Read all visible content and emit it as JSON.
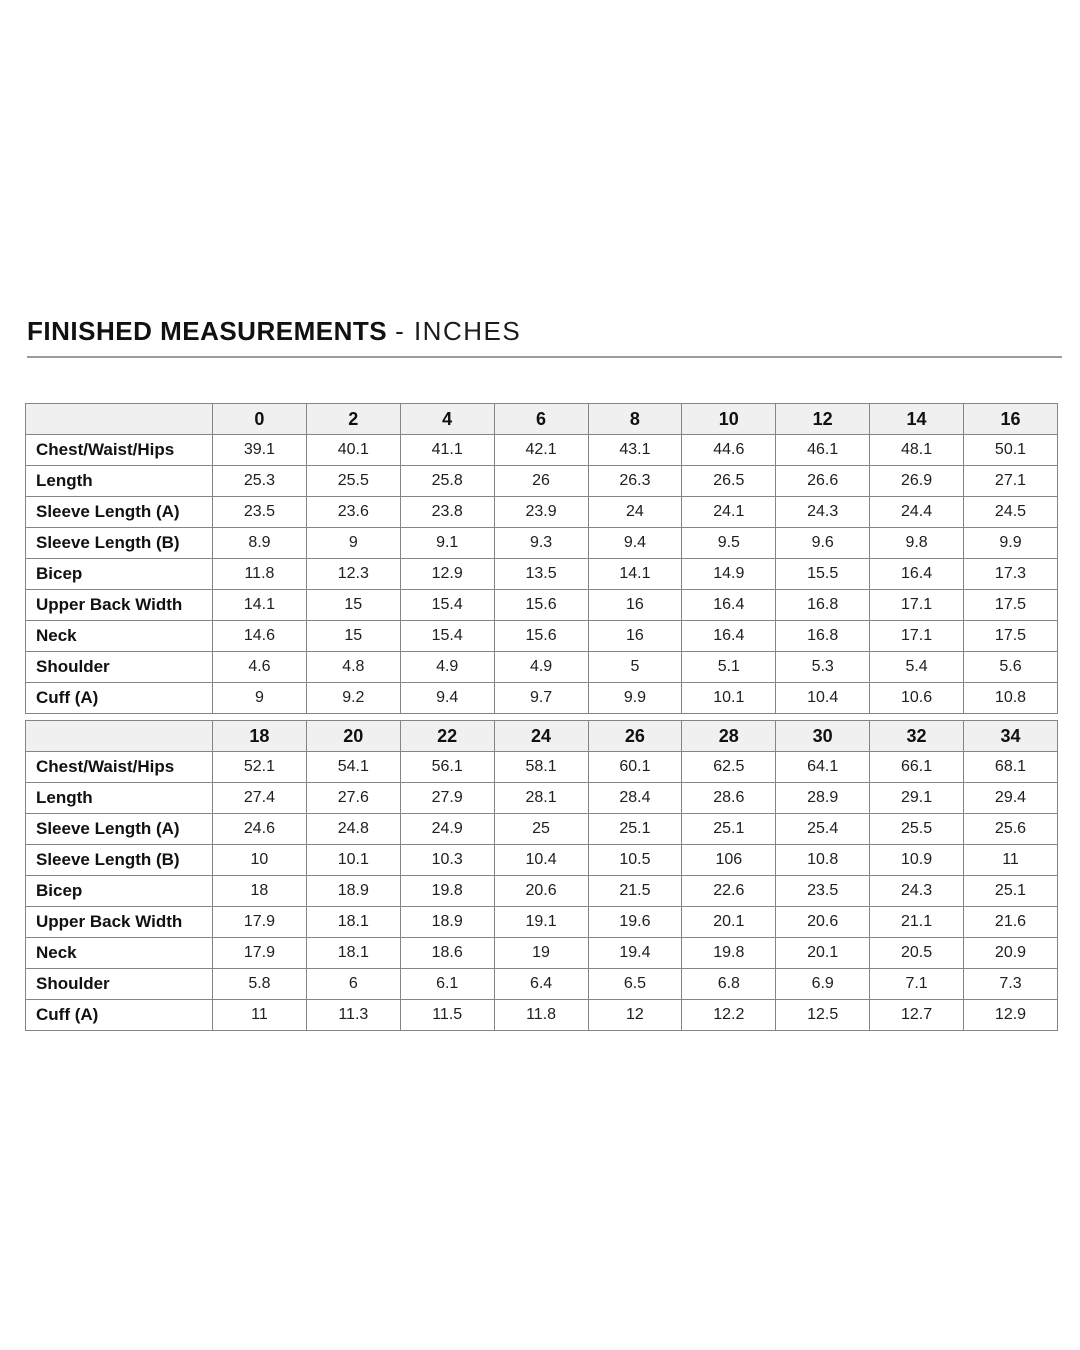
{
  "page": {
    "title": {
      "bold": "FINISHED MEASUREMENTS",
      "light": "- INCHES"
    }
  },
  "colors": {
    "header_bg": "#f0f0f0",
    "border": "#858585",
    "text": "#111111",
    "rule": "#9c9c9c"
  },
  "measurements_table": {
    "unit": "inches",
    "blocks": [
      {
        "sizes": [
          "0",
          "2",
          "4",
          "6",
          "8",
          "10",
          "12",
          "14",
          "16"
        ],
        "rows": [
          {
            "label": "Chest/Waist/Hips",
            "values": [
              "39.1",
              "40.1",
              "41.1",
              "42.1",
              "43.1",
              "44.6",
              "46.1",
              "48.1",
              "50.1"
            ]
          },
          {
            "label": "Length",
            "values": [
              "25.3",
              "25.5",
              "25.8",
              "26",
              "26.3",
              "26.5",
              "26.6",
              "26.9",
              "27.1"
            ]
          },
          {
            "label": "Sleeve Length (A)",
            "values": [
              "23.5",
              "23.6",
              "23.8",
              "23.9",
              "24",
              "24.1",
              "24.3",
              "24.4",
              "24.5"
            ]
          },
          {
            "label": "Sleeve Length (B)",
            "values": [
              "8.9",
              "9",
              "9.1",
              "9.3",
              "9.4",
              "9.5",
              "9.6",
              "9.8",
              "9.9"
            ]
          },
          {
            "label": "Bicep",
            "values": [
              "11.8",
              "12.3",
              "12.9",
              "13.5",
              "14.1",
              "14.9",
              "15.5",
              "16.4",
              "17.3"
            ]
          },
          {
            "label": "Upper Back Width",
            "values": [
              "14.1",
              "15",
              "15.4",
              "15.6",
              "16",
              "16.4",
              "16.8",
              "17.1",
              "17.5"
            ]
          },
          {
            "label": "Neck",
            "values": [
              "14.6",
              "15",
              "15.4",
              "15.6",
              "16",
              "16.4",
              "16.8",
              "17.1",
              "17.5"
            ]
          },
          {
            "label": "Shoulder",
            "values": [
              "4.6",
              "4.8",
              "4.9",
              "4.9",
              "5",
              "5.1",
              "5.3",
              "5.4",
              "5.6"
            ]
          },
          {
            "label": "Cuff (A)",
            "values": [
              "9",
              "9.2",
              "9.4",
              "9.7",
              "9.9",
              "10.1",
              "10.4",
              "10.6",
              "10.8"
            ]
          }
        ]
      },
      {
        "sizes": [
          "18",
          "20",
          "22",
          "24",
          "26",
          "28",
          "30",
          "32",
          "34"
        ],
        "rows": [
          {
            "label": "Chest/Waist/Hips",
            "values": [
              "52.1",
              "54.1",
              "56.1",
              "58.1",
              "60.1",
              "62.5",
              "64.1",
              "66.1",
              "68.1"
            ]
          },
          {
            "label": "Length",
            "values": [
              "27.4",
              "27.6",
              "27.9",
              "28.1",
              "28.4",
              "28.6",
              "28.9",
              "29.1",
              "29.4"
            ]
          },
          {
            "label": "Sleeve Length (A)",
            "values": [
              "24.6",
              "24.8",
              "24.9",
              "25",
              "25.1",
              "25.1",
              "25.4",
              "25.5",
              "25.6"
            ]
          },
          {
            "label": "Sleeve Length (B)",
            "values": [
              "10",
              "10.1",
              "10.3",
              "10.4",
              "10.5",
              "106",
              "10.8",
              "10.9",
              "11"
            ]
          },
          {
            "label": "Bicep",
            "values": [
              "18",
              "18.9",
              "19.8",
              "20.6",
              "21.5",
              "22.6",
              "23.5",
              "24.3",
              "25.1"
            ]
          },
          {
            "label": "Upper Back Width",
            "values": [
              "17.9",
              "18.1",
              "18.9",
              "19.1",
              "19.6",
              "20.1",
              "20.6",
              "21.1",
              "21.6"
            ]
          },
          {
            "label": "Neck",
            "values": [
              "17.9",
              "18.1",
              "18.6",
              "19",
              "19.4",
              "19.8",
              "20.1",
              "20.5",
              "20.9"
            ]
          },
          {
            "label": "Shoulder",
            "values": [
              "5.8",
              "6",
              "6.1",
              "6.4",
              "6.5",
              "6.8",
              "6.9",
              "7.1",
              "7.3"
            ]
          },
          {
            "label": "Cuff (A)",
            "values": [
              "11",
              "11.3",
              "11.5",
              "11.8",
              "12",
              "12.2",
              "12.5",
              "12.7",
              "12.9"
            ]
          }
        ]
      }
    ]
  }
}
